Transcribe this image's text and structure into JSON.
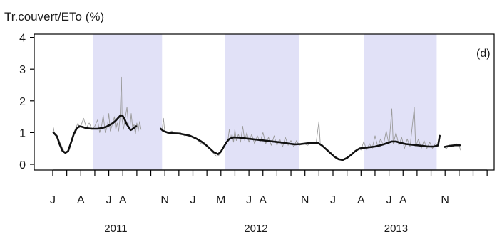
{
  "chart_data": {
    "type": "line",
    "title": "",
    "ylabel": "Tr.couvert/ETo (%)",
    "panel_label": "(d)",
    "ylim": [
      0,
      4
    ],
    "yticks": [
      0,
      1,
      2,
      3,
      4
    ],
    "month_labels": [
      {
        "t": 0,
        "label": "J"
      },
      {
        "t": 2,
        "label": "A"
      },
      {
        "t": 4,
        "label": "J"
      },
      {
        "t": 5,
        "label": "A"
      },
      {
        "t": 8,
        "label": "N"
      },
      {
        "t": 10,
        "label": "J"
      },
      {
        "t": 12,
        "label": "M"
      },
      {
        "t": 14,
        "label": "J"
      },
      {
        "t": 15,
        "label": "A"
      },
      {
        "t": 18,
        "label": "N"
      },
      {
        "t": 20,
        "label": "J"
      },
      {
        "t": 22,
        "label": "A"
      },
      {
        "t": 24,
        "label": "J"
      },
      {
        "t": 25,
        "label": "A"
      },
      {
        "t": 28,
        "label": "N"
      }
    ],
    "years": [
      {
        "t": 4.5,
        "label": "2011"
      },
      {
        "t": 14.5,
        "label": "2012"
      },
      {
        "t": 24.5,
        "label": "2013"
      }
    ],
    "shaded_periods": [
      [
        2.9,
        7.8
      ],
      [
        12.3,
        17.6
      ],
      [
        22.2,
        27.4
      ]
    ],
    "series": [
      {
        "style": "daily",
        "color": "#9a9a9a",
        "segments": [
          [
            [
              0.05,
              1.15
            ],
            [
              0.1,
              1.0
            ],
            [
              0.3,
              0.92
            ],
            [
              0.5,
              0.7
            ],
            [
              0.8,
              0.42
            ],
            [
              1.0,
              0.38
            ],
            [
              1.2,
              0.55
            ],
            [
              1.4,
              0.88
            ],
            [
              1.6,
              1.1
            ],
            [
              1.8,
              1.3
            ],
            [
              1.9,
              1.15
            ],
            [
              2.0,
              1.2
            ],
            [
              2.2,
              1.45
            ],
            [
              2.4,
              1.15
            ],
            [
              2.6,
              1.3
            ],
            [
              2.8,
              1.1
            ],
            [
              3.0,
              1.2
            ],
            [
              3.2,
              1.4
            ],
            [
              3.35,
              1.0
            ],
            [
              3.5,
              1.25
            ],
            [
              3.6,
              1.55
            ],
            [
              3.75,
              1.0
            ],
            [
              3.9,
              1.2
            ],
            [
              4.0,
              1.6
            ],
            [
              4.1,
              1.05
            ],
            [
              4.25,
              1.25
            ],
            [
              4.4,
              1.5
            ],
            [
              4.5,
              1.1
            ],
            [
              4.6,
              1.3
            ],
            [
              4.7,
              1.05
            ],
            [
              4.8,
              1.45
            ],
            [
              4.9,
              2.75
            ],
            [
              4.95,
              1.4
            ],
            [
              5.05,
              1.1
            ],
            [
              5.15,
              1.4
            ],
            [
              5.3,
              1.8
            ],
            [
              5.4,
              1.2
            ],
            [
              5.5,
              1.1
            ],
            [
              5.6,
              1.6
            ],
            [
              5.7,
              1.15
            ],
            [
              5.8,
              1.25
            ],
            [
              5.9,
              0.95
            ],
            [
              6.0,
              1.3
            ],
            [
              6.1,
              1.05
            ],
            [
              6.2,
              1.35
            ],
            [
              6.3,
              1.1
            ]
          ],
          [
            [
              7.7,
              1.15
            ],
            [
              7.8,
              1.05
            ],
            [
              7.9,
              1.45
            ],
            [
              8.0,
              1.0
            ],
            [
              8.3,
              1.0
            ],
            [
              8.5,
              1.05
            ],
            [
              8.8,
              0.95
            ],
            [
              9.1,
              1.0
            ],
            [
              9.4,
              0.9
            ],
            [
              9.7,
              0.95
            ],
            [
              10.0,
              0.85
            ],
            [
              10.3,
              0.78
            ],
            [
              10.6,
              0.65
            ],
            [
              10.9,
              0.6
            ],
            [
              11.2,
              0.5
            ],
            [
              11.4,
              0.38
            ],
            [
              11.7,
              0.25
            ],
            [
              11.9,
              0.3
            ],
            [
              12.1,
              0.45
            ],
            [
              12.3,
              0.6
            ],
            [
              12.5,
              0.75
            ],
            [
              12.6,
              1.1
            ],
            [
              12.7,
              0.8
            ],
            [
              12.8,
              0.95
            ],
            [
              12.9,
              0.7
            ],
            [
              13.0,
              1.1
            ],
            [
              13.1,
              0.75
            ],
            [
              13.25,
              0.95
            ],
            [
              13.4,
              0.7
            ],
            [
              13.55,
              1.2
            ],
            [
              13.7,
              0.75
            ],
            [
              13.85,
              1.0
            ],
            [
              14.0,
              0.7
            ],
            [
              14.2,
              0.95
            ],
            [
              14.4,
              0.65
            ],
            [
              14.6,
              0.9
            ],
            [
              14.8,
              0.7
            ],
            [
              15.0,
              1.0
            ],
            [
              15.2,
              0.65
            ],
            [
              15.4,
              0.85
            ],
            [
              15.6,
              0.6
            ],
            [
              15.8,
              0.9
            ],
            [
              16.0,
              0.6
            ],
            [
              16.2,
              0.8
            ],
            [
              16.4,
              0.55
            ],
            [
              16.6,
              0.85
            ],
            [
              16.8,
              0.6
            ],
            [
              17.0,
              0.75
            ],
            [
              17.2,
              0.55
            ],
            [
              17.4,
              0.75
            ],
            [
              17.6,
              0.6
            ],
            [
              17.9,
              0.65
            ],
            [
              18.2,
              0.6
            ],
            [
              18.5,
              0.7
            ],
            [
              18.8,
              0.68
            ],
            [
              19.0,
              1.35
            ],
            [
              19.1,
              0.6
            ],
            [
              19.4,
              0.52
            ],
            [
              19.7,
              0.4
            ],
            [
              20.0,
              0.3
            ],
            [
              20.3,
              0.18
            ],
            [
              20.6,
              0.12
            ],
            [
              20.9,
              0.18
            ],
            [
              21.2,
              0.28
            ],
            [
              21.5,
              0.4
            ],
            [
              21.8,
              0.5
            ],
            [
              22.0,
              0.45
            ],
            [
              22.2,
              0.72
            ],
            [
              22.4,
              0.45
            ],
            [
              22.6,
              0.65
            ],
            [
              22.8,
              0.5
            ],
            [
              23.0,
              0.9
            ],
            [
              23.2,
              0.55
            ],
            [
              23.4,
              0.8
            ],
            [
              23.6,
              0.6
            ],
            [
              23.8,
              1.05
            ],
            [
              24.0,
              0.6
            ],
            [
              24.2,
              1.75
            ],
            [
              24.3,
              0.65
            ],
            [
              24.5,
              1.0
            ],
            [
              24.7,
              0.6
            ],
            [
              24.9,
              0.85
            ],
            [
              25.1,
              0.5
            ],
            [
              25.3,
              0.8
            ],
            [
              25.5,
              0.55
            ],
            [
              25.8,
              1.8
            ],
            [
              25.9,
              0.55
            ],
            [
              26.1,
              0.8
            ],
            [
              26.3,
              0.5
            ],
            [
              26.5,
              0.75
            ],
            [
              26.7,
              0.5
            ],
            [
              26.9,
              0.7
            ],
            [
              27.1,
              0.5
            ],
            [
              27.3,
              0.65
            ],
            [
              27.5,
              0.55
            ],
            [
              27.6,
              0.9
            ]
          ],
          [
            [
              27.9,
              0.55
            ],
            [
              28.1,
              0.5
            ],
            [
              28.3,
              0.6
            ],
            [
              28.5,
              0.55
            ],
            [
              28.7,
              0.6
            ],
            [
              28.8,
              0.65
            ],
            [
              29.0,
              0.6
            ],
            [
              29.1,
              0.45
            ]
          ]
        ]
      },
      {
        "style": "smoothed",
        "color": "#111111",
        "segments": [
          [
            [
              0.05,
              1.0
            ],
            [
              0.3,
              0.88
            ],
            [
              0.5,
              0.62
            ],
            [
              0.7,
              0.42
            ],
            [
              0.9,
              0.36
            ],
            [
              1.1,
              0.42
            ],
            [
              1.3,
              0.68
            ],
            [
              1.5,
              0.95
            ],
            [
              1.7,
              1.12
            ],
            [
              1.9,
              1.2
            ],
            [
              2.1,
              1.18
            ],
            [
              2.4,
              1.14
            ],
            [
              2.8,
              1.12
            ],
            [
              3.2,
              1.12
            ],
            [
              3.6,
              1.15
            ],
            [
              3.9,
              1.2
            ],
            [
              4.1,
              1.25
            ],
            [
              4.3,
              1.3
            ],
            [
              4.5,
              1.38
            ],
            [
              4.7,
              1.48
            ],
            [
              4.85,
              1.55
            ],
            [
              5.0,
              1.52
            ],
            [
              5.15,
              1.4
            ],
            [
              5.3,
              1.25
            ],
            [
              5.45,
              1.15
            ],
            [
              5.55,
              1.08
            ],
            [
              5.65,
              1.1
            ],
            [
              5.8,
              1.15
            ],
            [
              5.95,
              1.2
            ]
          ],
          [
            [
              7.7,
              1.12
            ],
            [
              7.9,
              1.05
            ],
            [
              8.2,
              1.0
            ],
            [
              8.6,
              0.98
            ],
            [
              9.0,
              0.97
            ],
            [
              9.4,
              0.94
            ],
            [
              9.8,
              0.9
            ],
            [
              10.2,
              0.82
            ],
            [
              10.6,
              0.72
            ],
            [
              10.9,
              0.62
            ],
            [
              11.2,
              0.5
            ],
            [
              11.5,
              0.38
            ],
            [
              11.8,
              0.32
            ],
            [
              12.0,
              0.4
            ],
            [
              12.2,
              0.55
            ],
            [
              12.4,
              0.7
            ],
            [
              12.6,
              0.8
            ],
            [
              12.9,
              0.85
            ],
            [
              13.3,
              0.84
            ],
            [
              13.7,
              0.82
            ],
            [
              14.1,
              0.8
            ],
            [
              14.5,
              0.78
            ],
            [
              14.9,
              0.76
            ],
            [
              15.3,
              0.74
            ],
            [
              15.7,
              0.72
            ],
            [
              16.1,
              0.7
            ],
            [
              16.5,
              0.68
            ],
            [
              16.9,
              0.65
            ],
            [
              17.3,
              0.63
            ],
            [
              17.7,
              0.64
            ],
            [
              18.1,
              0.66
            ],
            [
              18.5,
              0.68
            ],
            [
              18.9,
              0.68
            ],
            [
              19.2,
              0.6
            ],
            [
              19.5,
              0.48
            ],
            [
              19.8,
              0.36
            ],
            [
              20.1,
              0.24
            ],
            [
              20.4,
              0.16
            ],
            [
              20.7,
              0.14
            ],
            [
              21.0,
              0.2
            ],
            [
              21.3,
              0.3
            ],
            [
              21.6,
              0.42
            ],
            [
              21.9,
              0.5
            ],
            [
              22.2,
              0.52
            ],
            [
              22.6,
              0.54
            ],
            [
              23.0,
              0.56
            ],
            [
              23.4,
              0.6
            ],
            [
              23.8,
              0.66
            ],
            [
              24.2,
              0.72
            ],
            [
              24.5,
              0.72
            ],
            [
              24.8,
              0.68
            ],
            [
              25.2,
              0.64
            ],
            [
              25.6,
              0.62
            ],
            [
              26.0,
              0.6
            ],
            [
              26.4,
              0.58
            ],
            [
              26.8,
              0.56
            ],
            [
              27.2,
              0.56
            ],
            [
              27.5,
              0.6
            ],
            [
              27.62,
              0.9
            ]
          ],
          [
            [
              27.95,
              0.55
            ],
            [
              28.3,
              0.58
            ],
            [
              28.7,
              0.6
            ],
            [
              29.05,
              0.6
            ]
          ]
        ]
      }
    ]
  }
}
